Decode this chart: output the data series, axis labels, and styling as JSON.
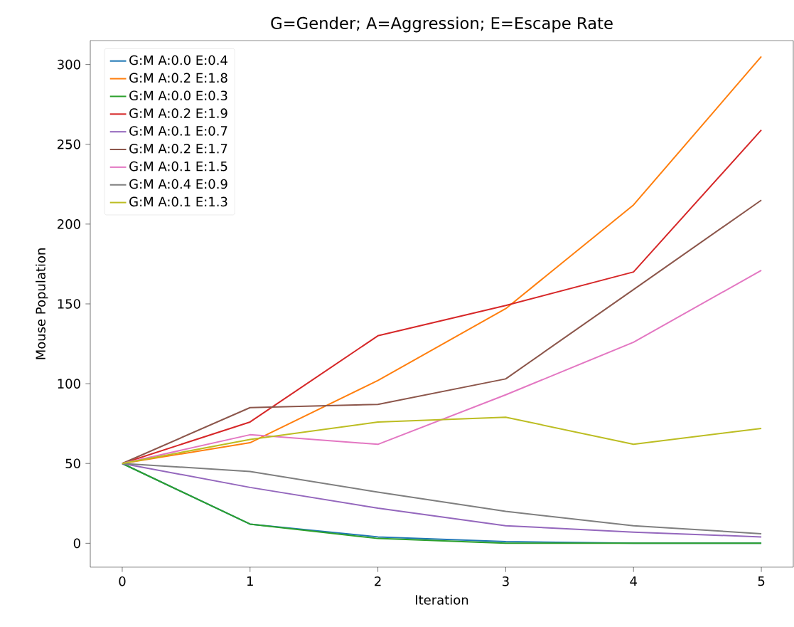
{
  "chart_data": {
    "type": "line",
    "title": "G=Gender; A=Aggression; E=Escape Rate",
    "xlabel": "Iteration",
    "ylabel": "Mouse Population",
    "x": [
      0,
      1,
      2,
      3,
      4,
      5
    ],
    "series": [
      {
        "name": "G:M A:0.0 E:0.4",
        "color": "#1f77b4",
        "values": [
          50,
          12,
          4,
          1,
          0,
          0
        ]
      },
      {
        "name": "G:M A:0.2 E:1.8",
        "color": "#ff7f0e",
        "values": [
          50,
          63,
          102,
          147,
          212,
          305
        ]
      },
      {
        "name": "G:M A:0.0 E:0.3",
        "color": "#2ca02c",
        "values": [
          50,
          12,
          3,
          0,
          0,
          0
        ]
      },
      {
        "name": "G:M A:0.2 E:1.9",
        "color": "#d62728",
        "values": [
          50,
          76,
          130,
          149,
          170,
          259
        ]
      },
      {
        "name": "G:M A:0.1 E:0.7",
        "color": "#9467bd",
        "values": [
          50,
          35,
          22,
          11,
          7,
          4
        ]
      },
      {
        "name": "G:M A:0.2 E:1.7",
        "color": "#8c564b",
        "values": [
          50,
          85,
          87,
          103,
          159,
          215
        ]
      },
      {
        "name": "G:M A:0.1 E:1.5",
        "color": "#e377c2",
        "values": [
          50,
          68,
          62,
          93,
          126,
          171
        ]
      },
      {
        "name": "G:M A:0.4 E:0.9",
        "color": "#7f7f7f",
        "values": [
          50,
          45,
          32,
          20,
          11,
          6
        ]
      },
      {
        "name": "G:M A:0.1 E:1.3",
        "color": "#bcbd22",
        "values": [
          50,
          65,
          76,
          79,
          62,
          72
        ]
      }
    ],
    "xlim": [
      -0.25,
      5.25
    ],
    "ylim": [
      -15,
      315
    ],
    "xticks": [
      0,
      1,
      2,
      3,
      4,
      5
    ],
    "yticks": [
      0,
      50,
      100,
      150,
      200,
      250,
      300
    ],
    "legend": "top left",
    "grid": false,
    "marker": "none",
    "line_style": "solid"
  }
}
